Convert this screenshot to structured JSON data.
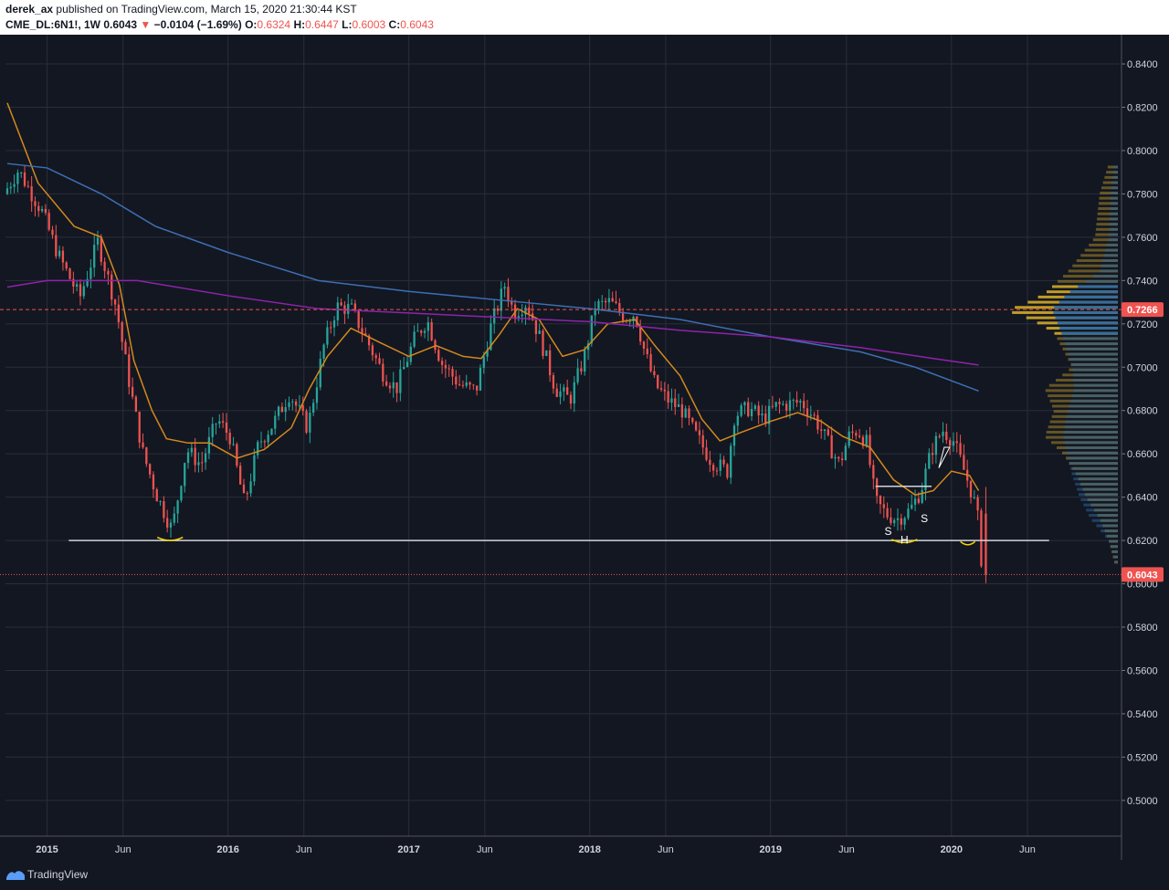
{
  "header": {
    "author": "derek_ax",
    "published": "published on TradingView.com, March 15, 2020 21:30:44 KST",
    "symbol": "CME_DL:6N1!, 1W",
    "last": "0.6043",
    "change": "−0.0104 (−1.69%)",
    "o_label": "O:",
    "o": "0.6324",
    "h_label": "H:",
    "h": "0.6447",
    "l_label": "L:",
    "l": "0.6003",
    "c_label": "C:",
    "c": "0.6043"
  },
  "footer": {
    "brand": "TradingView"
  },
  "colors": {
    "background": "#131722",
    "grid": "#2a2e39",
    "up": "#26a69a",
    "down": "#ef5350",
    "ema_fast": "#d4891d",
    "ma_blue": "#3d6fb4",
    "ma_purple": "#8e24aa",
    "vp_gold": "#c9a227",
    "vp_blue": "#2e6ca4",
    "support": "#d1d4dc",
    "annotation": "#f5d600"
  },
  "chart_data": {
    "type": "candlestick",
    "timeframe": "1W",
    "x_ticks": [
      "2015",
      "Jun",
      "2016",
      "Jun",
      "2017",
      "Jun",
      "2018",
      "Jun",
      "2019",
      "Jun",
      "2020",
      "Jun"
    ],
    "x_tick_bold": [
      true,
      false,
      true,
      false,
      true,
      false,
      true,
      false,
      true,
      false,
      true,
      false
    ],
    "y_ticks": [
      "0.8400",
      "0.8200",
      "0.8000",
      "0.7800",
      "0.7600",
      "0.7400",
      "0.7200",
      "0.7000",
      "0.6800",
      "0.6600",
      "0.6400",
      "0.6200",
      "0.6000",
      "0.5800",
      "0.5600",
      "0.5400",
      "0.5200",
      "0.5000"
    ],
    "ylim": [
      0.4835,
      0.8535
    ],
    "x_range_years": [
      2014.77,
      2020.93
    ],
    "price_anchors": [
      [
        2014.78,
        0.78
      ],
      [
        2014.86,
        0.791
      ],
      [
        2014.99,
        0.772
      ],
      [
        2015.08,
        0.752
      ],
      [
        2015.2,
        0.732
      ],
      [
        2015.3,
        0.758
      ],
      [
        2015.4,
        0.728
      ],
      [
        2015.48,
        0.69
      ],
      [
        2015.55,
        0.66
      ],
      [
        2015.63,
        0.64
      ],
      [
        2015.71,
        0.625
      ],
      [
        2015.79,
        0.662
      ],
      [
        2015.87,
        0.655
      ],
      [
        2015.96,
        0.676
      ],
      [
        2016.03,
        0.668
      ],
      [
        2016.11,
        0.637
      ],
      [
        2016.19,
        0.665
      ],
      [
        2016.27,
        0.674
      ],
      [
        2016.36,
        0.688
      ],
      [
        2016.46,
        0.672
      ],
      [
        2016.55,
        0.71
      ],
      [
        2016.62,
        0.728
      ],
      [
        2016.7,
        0.727
      ],
      [
        2016.79,
        0.712
      ],
      [
        2016.87,
        0.698
      ],
      [
        2016.95,
        0.69
      ],
      [
        2017.05,
        0.713
      ],
      [
        2017.12,
        0.722
      ],
      [
        2017.2,
        0.702
      ],
      [
        2017.3,
        0.692
      ],
      [
        2017.39,
        0.689
      ],
      [
        2017.47,
        0.718
      ],
      [
        2017.55,
        0.738
      ],
      [
        2017.6,
        0.725
      ],
      [
        2017.67,
        0.73
      ],
      [
        2017.75,
        0.712
      ],
      [
        2017.83,
        0.69
      ],
      [
        2017.91,
        0.685
      ],
      [
        2017.99,
        0.705
      ],
      [
        2018.05,
        0.728
      ],
      [
        2018.13,
        0.73
      ],
      [
        2018.22,
        0.723
      ],
      [
        2018.27,
        0.725
      ],
      [
        2018.32,
        0.708
      ],
      [
        2018.38,
        0.692
      ],
      [
        2018.45,
        0.685
      ],
      [
        2018.53,
        0.68
      ],
      [
        2018.61,
        0.668
      ],
      [
        2018.69,
        0.657
      ],
      [
        2018.78,
        0.652
      ],
      [
        2018.82,
        0.678
      ],
      [
        2018.9,
        0.681
      ],
      [
        2018.98,
        0.676
      ],
      [
        2019.05,
        0.682
      ],
      [
        2019.12,
        0.683
      ],
      [
        2019.19,
        0.684
      ],
      [
        2019.26,
        0.677
      ],
      [
        2019.33,
        0.666
      ],
      [
        2019.4,
        0.655
      ],
      [
        2019.45,
        0.668
      ],
      [
        2019.5,
        0.671
      ],
      [
        2019.55,
        0.665
      ],
      [
        2019.6,
        0.638
      ],
      [
        2019.66,
        0.632
      ],
      [
        2019.72,
        0.63
      ],
      [
        2019.79,
        0.634
      ],
      [
        2019.85,
        0.643
      ],
      [
        2019.91,
        0.662
      ],
      [
        2019.97,
        0.671
      ],
      [
        2020.03,
        0.666
      ],
      [
        2020.09,
        0.652
      ],
      [
        2020.14,
        0.64
      ],
      [
        2020.17,
        0.628
      ],
      [
        2020.19,
        0.6043
      ]
    ],
    "last_candle": {
      "open": 0.6324,
      "high": 0.6447,
      "low": 0.6003,
      "close": 0.6043
    },
    "moving_averages": [
      {
        "color": "#d4891d",
        "points": [
          [
            2014.78,
            0.822
          ],
          [
            2014.95,
            0.785
          ],
          [
            2015.15,
            0.765
          ],
          [
            2015.3,
            0.76
          ],
          [
            2015.4,
            0.738
          ],
          [
            2015.48,
            0.703
          ],
          [
            2015.58,
            0.68
          ],
          [
            2015.66,
            0.667
          ],
          [
            2015.78,
            0.665
          ],
          [
            2015.9,
            0.665
          ],
          [
            2016.05,
            0.658
          ],
          [
            2016.2,
            0.662
          ],
          [
            2016.35,
            0.672
          ],
          [
            2016.45,
            0.69
          ],
          [
            2016.55,
            0.705
          ],
          [
            2016.68,
            0.718
          ],
          [
            2016.85,
            0.711
          ],
          [
            2017.0,
            0.705
          ],
          [
            2017.15,
            0.71
          ],
          [
            2017.3,
            0.705
          ],
          [
            2017.4,
            0.704
          ],
          [
            2017.5,
            0.715
          ],
          [
            2017.6,
            0.727
          ],
          [
            2017.72,
            0.722
          ],
          [
            2017.85,
            0.705
          ],
          [
            2017.97,
            0.708
          ],
          [
            2018.1,
            0.72
          ],
          [
            2018.25,
            0.722
          ],
          [
            2018.36,
            0.71
          ],
          [
            2018.5,
            0.696
          ],
          [
            2018.62,
            0.676
          ],
          [
            2018.72,
            0.666
          ],
          [
            2018.84,
            0.67
          ],
          [
            2019.0,
            0.675
          ],
          [
            2019.15,
            0.679
          ],
          [
            2019.28,
            0.675
          ],
          [
            2019.4,
            0.668
          ],
          [
            2019.55,
            0.663
          ],
          [
            2019.68,
            0.648
          ],
          [
            2019.8,
            0.641
          ],
          [
            2019.9,
            0.643
          ],
          [
            2020.0,
            0.652
          ],
          [
            2020.1,
            0.65
          ],
          [
            2020.15,
            0.643
          ]
        ]
      },
      {
        "color": "#3d6fb4",
        "points": [
          [
            2014.78,
            0.794
          ],
          [
            2015.0,
            0.792
          ],
          [
            2015.3,
            0.78
          ],
          [
            2015.6,
            0.765
          ],
          [
            2016.0,
            0.753
          ],
          [
            2016.5,
            0.74
          ],
          [
            2017.0,
            0.735
          ],
          [
            2017.5,
            0.731
          ],
          [
            2018.0,
            0.727
          ],
          [
            2018.5,
            0.722
          ],
          [
            2019.0,
            0.714
          ],
          [
            2019.5,
            0.707
          ],
          [
            2019.8,
            0.7
          ],
          [
            2020.15,
            0.689
          ]
        ]
      },
      {
        "color": "#8e24aa",
        "points": [
          [
            2014.78,
            0.737
          ],
          [
            2015.0,
            0.74
          ],
          [
            2015.5,
            0.74
          ],
          [
            2016.0,
            0.733
          ],
          [
            2016.5,
            0.727
          ],
          [
            2017.0,
            0.725
          ],
          [
            2017.5,
            0.723
          ],
          [
            2018.0,
            0.721
          ],
          [
            2018.5,
            0.717
          ],
          [
            2019.0,
            0.714
          ],
          [
            2019.5,
            0.709
          ],
          [
            2019.9,
            0.704
          ],
          [
            2020.15,
            0.701
          ]
        ]
      }
    ],
    "volume_profile": {
      "gold": [
        [
          0.794,
          10
        ],
        [
          0.78,
          20
        ],
        [
          0.76,
          25
        ],
        [
          0.744,
          55
        ],
        [
          0.734,
          80
        ],
        [
          0.728,
          108
        ],
        [
          0.7266,
          125
        ],
        [
          0.722,
          95
        ],
        [
          0.716,
          70
        ],
        [
          0.7,
          50
        ],
        [
          0.69,
          80
        ],
        [
          0.68,
          70
        ],
        [
          0.668,
          80
        ],
        [
          0.66,
          60
        ],
        [
          0.65,
          45
        ],
        [
          0.64,
          35
        ],
        [
          0.63,
          20
        ],
        [
          0.62,
          10
        ],
        [
          0.61,
          4
        ]
      ],
      "blue": [
        [
          0.794,
          4
        ],
        [
          0.78,
          8
        ],
        [
          0.76,
          10
        ],
        [
          0.744,
          20
        ],
        [
          0.734,
          55
        ],
        [
          0.7266,
          72
        ],
        [
          0.716,
          62
        ],
        [
          0.7,
          50
        ],
        [
          0.69,
          48
        ],
        [
          0.68,
          55
        ],
        [
          0.668,
          60
        ],
        [
          0.66,
          56
        ],
        [
          0.65,
          50
        ],
        [
          0.64,
          42
        ],
        [
          0.63,
          30
        ],
        [
          0.62,
          10
        ],
        [
          0.61,
          3
        ]
      ],
      "poc": 0.7266
    },
    "lines": [
      {
        "kind": "support",
        "price": 0.62,
        "from": 2015.12,
        "to": 2020.54
      },
      {
        "kind": "neckline",
        "price": 0.645,
        "from": 2019.58,
        "to": 2019.89
      }
    ],
    "annotations": [
      {
        "text": "S",
        "x": 2019.65,
        "y": 0.6225
      },
      {
        "text": "H",
        "x": 2019.74,
        "y": 0.6185
      },
      {
        "text": "S",
        "x": 2019.85,
        "y": 0.6285
      }
    ],
    "price_labels": [
      {
        "text": "0.7266",
        "price": 0.7266,
        "color": "#ef5350"
      },
      {
        "text": "0.6043",
        "price": 0.6043,
        "color": "#ef5350"
      }
    ]
  }
}
